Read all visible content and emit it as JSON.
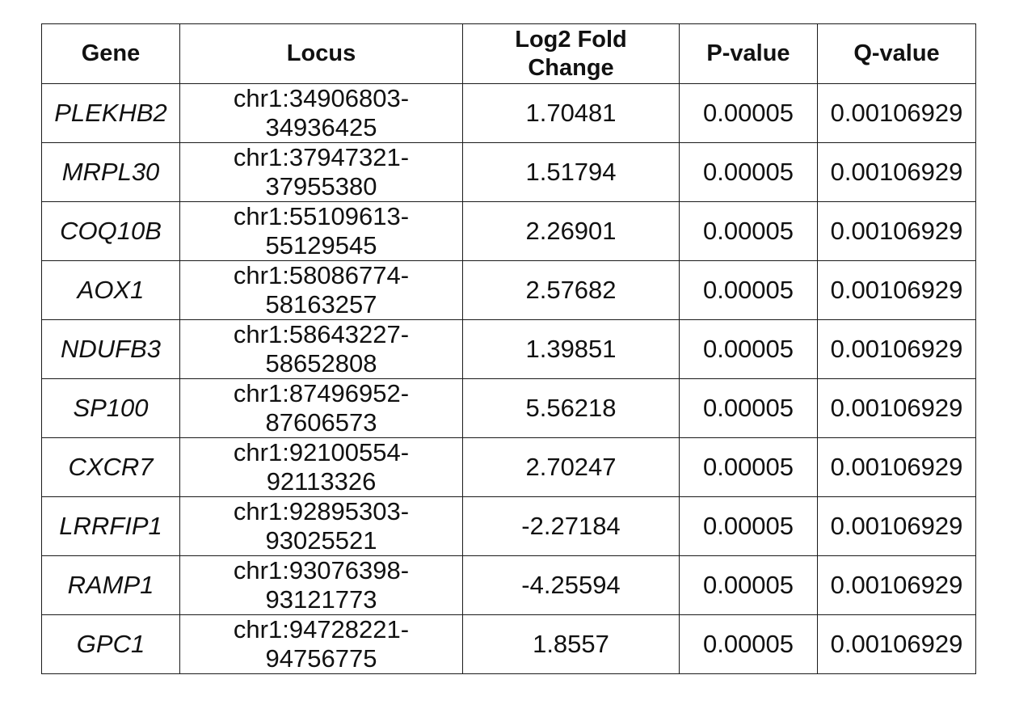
{
  "table": {
    "headers": {
      "gene": "Gene",
      "locus": "Locus",
      "lfc_line1": "Log2 Fold",
      "lfc_line2": "Change",
      "pvalue": "P-value",
      "qvalue": "Q-value"
    },
    "rows": [
      {
        "gene": "PLEKHB2",
        "locus_a": "chr1:34906803-",
        "locus_b": "34936425",
        "lfc": "1.70481",
        "p": "0.00005",
        "q": "0.00106929"
      },
      {
        "gene": "MRPL30",
        "locus_a": "chr1:37947321-",
        "locus_b": "37955380",
        "lfc": "1.51794",
        "p": "0.00005",
        "q": "0.00106929"
      },
      {
        "gene": "COQ10B",
        "locus_a": "chr1:55109613-",
        "locus_b": "55129545",
        "lfc": "2.26901",
        "p": "0.00005",
        "q": "0.00106929"
      },
      {
        "gene": "AOX1",
        "locus_a": "chr1:58086774-",
        "locus_b": "58163257",
        "lfc": "2.57682",
        "p": "0.00005",
        "q": "0.00106929"
      },
      {
        "gene": "NDUFB3",
        "locus_a": "chr1:58643227-",
        "locus_b": "58652808",
        "lfc": "1.39851",
        "p": "0.00005",
        "q": "0.00106929"
      },
      {
        "gene": "SP100",
        "locus_a": "chr1:87496952-",
        "locus_b": "87606573",
        "lfc": "5.56218",
        "p": "0.00005",
        "q": "0.00106929"
      },
      {
        "gene": "CXCR7",
        "locus_a": "chr1:92100554-",
        "locus_b": "92113326",
        "lfc": "2.70247",
        "p": "0.00005",
        "q": "0.00106929"
      },
      {
        "gene": "LRRFIP1",
        "locus_a": "chr1:92895303-",
        "locus_b": "93025521",
        "lfc": "-2.27184",
        "p": "0.00005",
        "q": "0.00106929"
      },
      {
        "gene": "RAMP1",
        "locus_a": "chr1:93076398-",
        "locus_b": "93121773",
        "lfc": "-4.25594",
        "p": "0.00005",
        "q": "0.00106929"
      },
      {
        "gene": "GPC1",
        "locus_a": "chr1:94728221-",
        "locus_b": "94756775",
        "lfc": "1.8557",
        "p": "0.00005",
        "q": "0.00106929"
      }
    ]
  }
}
